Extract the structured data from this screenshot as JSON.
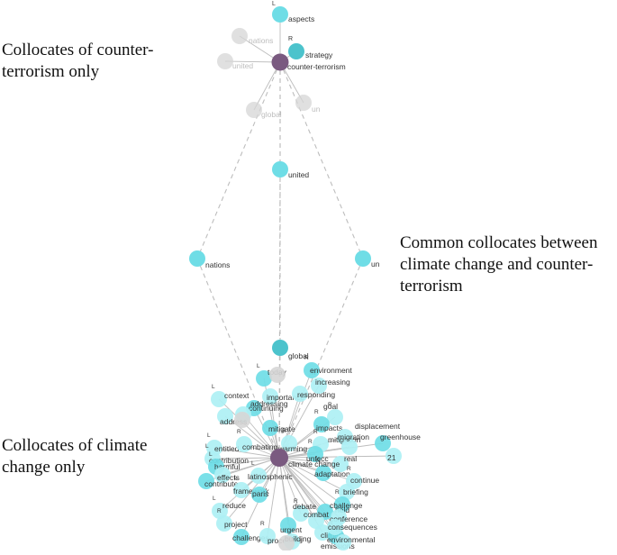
{
  "annotations": {
    "counter_terrorism_only": "Collocates of counter-\nterrorism only",
    "common": "Common collocates between\nclimate change and counter-\nterrorism",
    "climate_change_only": "Collocates of climate\nchange only"
  },
  "colors": {
    "hub": "#7a5a80",
    "node": "#6fdde6",
    "node_pale": "#aef0f4",
    "node_dark": "#4cc3cc",
    "node_grey": "#d6d6d6",
    "edge": "#bdbdbd",
    "label": "#333333",
    "label_grey": "#bdbdbd"
  },
  "hubs": {
    "counter_terrorism": {
      "label": "counter-terrorism"
    },
    "climate_change": {
      "label": "climate change"
    }
  },
  "ct_collocates": [
    {
      "label": "aspects",
      "tag": "L",
      "style": "node"
    },
    {
      "label": "strategy",
      "tag": "R",
      "style": "node_dark"
    },
    {
      "label": "nations",
      "tag": "",
      "style": "grey"
    },
    {
      "label": "united",
      "tag": "",
      "style": "grey"
    },
    {
      "label": "global",
      "tag": "",
      "style": "grey"
    },
    {
      "label": "un",
      "tag": "",
      "style": "grey"
    }
  ],
  "common_collocates": [
    {
      "label": "united",
      "style": "node"
    },
    {
      "label": "nations",
      "style": "node"
    },
    {
      "label": "un",
      "style": "node"
    },
    {
      "label": "global",
      "style": "node_dark"
    }
  ],
  "cc_collocates": [
    "today",
    "context",
    "importance",
    "responding",
    "continuing",
    "increasing",
    "environment",
    "addressing",
    "address",
    "goal",
    "impacts",
    "displacement",
    "greenhouse",
    "21",
    "entitled",
    "contribution",
    "harmful",
    "effects",
    "contribute",
    "combating",
    "mitigation",
    "warming",
    "unfccc",
    "migration",
    "adaptation",
    "real",
    "continue",
    "briefing",
    "held",
    "framework",
    "paris",
    "latinosphenic",
    "reduce",
    "project",
    "challenges",
    "debate",
    "urgent",
    "processes",
    "building",
    "climate",
    "emissions",
    "environmental",
    "challenge",
    "conference",
    "combat",
    "consequences",
    "mitigate"
  ]
}
